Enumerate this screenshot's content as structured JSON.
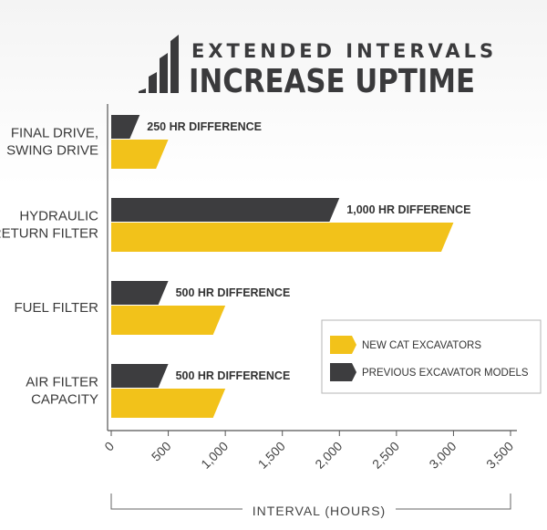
{
  "chart_data": {
    "type": "bar",
    "title_line1": "EXTENDED INTERVALS",
    "title_line2": "INCREASE UPTIME",
    "categories": [
      [
        "FINAL DRIVE,",
        "SWING DRIVE"
      ],
      [
        "HYDRAULIC",
        "RETURN FILTER"
      ],
      [
        "FUEL FILTER"
      ],
      [
        "AIR FILTER",
        "CAPACITY"
      ]
    ],
    "series": [
      {
        "name": "PREVIOUS EXCAVATOR MODELS",
        "color": "#3d3d3f",
        "values": [
          250,
          2000,
          500,
          500
        ]
      },
      {
        "name": "NEW CAT EXCAVATORS",
        "color": "#f2c21a",
        "values": [
          500,
          3000,
          1000,
          1000
        ]
      }
    ],
    "differences": [
      "250 HR DIFFERENCE",
      "1,000 HR DIFFERENCE",
      "500 HR DIFFERENCE",
      "500 HR DIFFERENCE"
    ],
    "xticks": [
      "0",
      "500",
      "1,000",
      "1,500",
      "2,000",
      "2,500",
      "3,000",
      "3,500"
    ],
    "xlim": [
      0,
      3500
    ],
    "xlabel": "INTERVAL (HOURS)",
    "ylabel": "",
    "legend": [
      {
        "label": "NEW CAT EXCAVATORS",
        "color": "#f2c21a"
      },
      {
        "label": "PREVIOUS EXCAVATOR MODELS",
        "color": "#3d3d3f"
      }
    ],
    "legend_position": "lower-right",
    "grid": false,
    "icon": "bar-chart-icon"
  }
}
